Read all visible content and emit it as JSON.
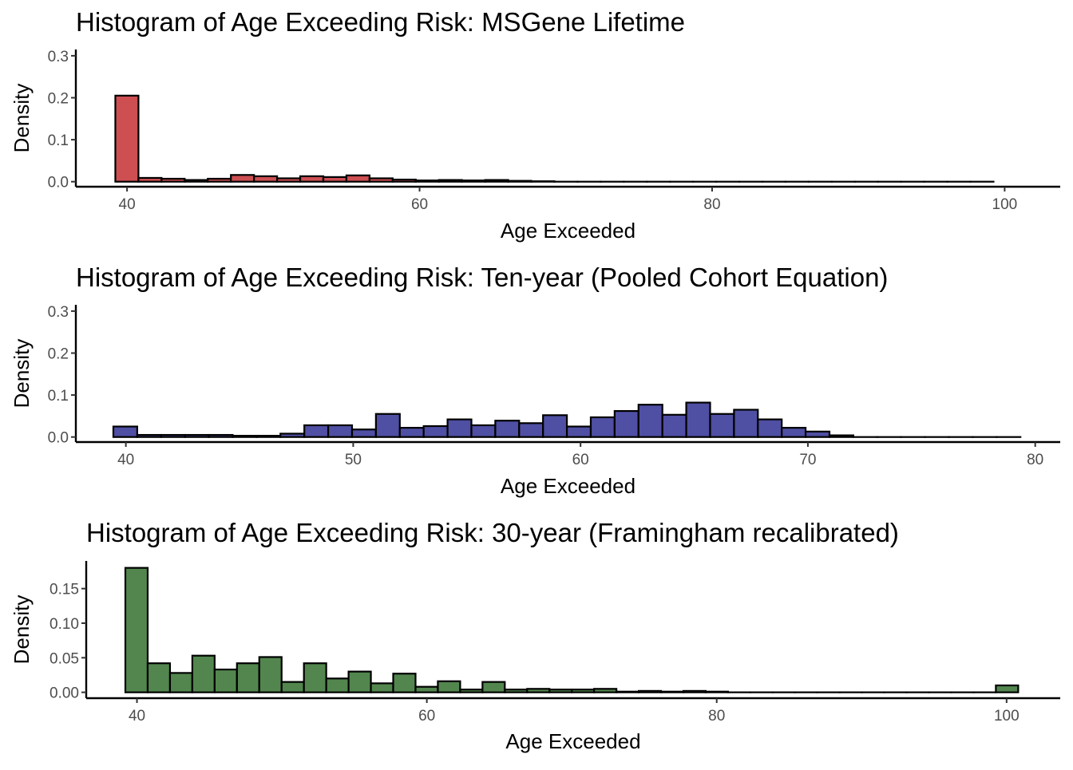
{
  "chart_data": [
    {
      "type": "bar",
      "title": "Histogram of Age Exceeding Risk: MSGene Lifetime",
      "xlabel": "Age Exceeded",
      "ylabel": "Density",
      "fill": "#cd4f52",
      "xlim": [
        36.5,
        103.8
      ],
      "ylim": [
        -0.012,
        0.315
      ],
      "xticks": [
        40,
        60,
        80,
        100
      ],
      "yticks": [
        0.0,
        0.1,
        0.2,
        0.3
      ],
      "ytick_labels": [
        "0.0",
        "0.1",
        "0.2",
        "0.3"
      ],
      "bin_start": 39.2,
      "bin_width": 1.58,
      "values": [
        0.205,
        0.009,
        0.007,
        0.004,
        0.007,
        0.016,
        0.013,
        0.008,
        0.013,
        0.011,
        0.015,
        0.008,
        0.005,
        0.003,
        0.004,
        0.003,
        0.004,
        0.002,
        0.001,
        0.0,
        0.0,
        0.0,
        0.0,
        0.0,
        0.0,
        0.0,
        0.0,
        0.0,
        0.0,
        0.0,
        0.0,
        0.0,
        0.0,
        0.0,
        0.0,
        0.0,
        0.0,
        0.0
      ]
    },
    {
      "type": "bar",
      "title": "Histogram of Age Exceeding Risk: Ten-year (Pooled Cohort Equation)",
      "xlabel": "Age Exceeded",
      "ylabel": "Density",
      "fill": "#4f4fa4",
      "xlim": [
        37.8,
        81.1
      ],
      "ylim": [
        -0.012,
        0.315
      ],
      "xticks": [
        40,
        50,
        60,
        70,
        80
      ],
      "yticks": [
        0.0,
        0.1,
        0.2,
        0.3
      ],
      "ytick_labels": [
        "0.0",
        "0.1",
        "0.2",
        "0.3"
      ],
      "bin_start": 39.45,
      "bin_width": 1.05,
      "values": [
        0.025,
        0.005,
        0.005,
        0.005,
        0.005,
        0.003,
        0.003,
        0.008,
        0.028,
        0.028,
        0.018,
        0.055,
        0.022,
        0.026,
        0.042,
        0.028,
        0.039,
        0.033,
        0.052,
        0.025,
        0.047,
        0.062,
        0.077,
        0.053,
        0.082,
        0.055,
        0.065,
        0.042,
        0.022,
        0.013,
        0.004,
        0.0,
        0.0,
        0.0,
        0.0,
        0.0,
        0.0,
        0.0
      ]
    },
    {
      "type": "bar",
      "title": "Histogram of Age Exceeding Risk: 30-year (Framingham recalibrated)",
      "xlabel": "Age Exceeded",
      "ylabel": "Density",
      "fill": "#52864e",
      "xlim": [
        36.5,
        103.7
      ],
      "ylim": [
        -0.0085,
        0.19
      ],
      "xticks": [
        40,
        60,
        80,
        100
      ],
      "yticks": [
        0.0,
        0.05,
        0.1,
        0.15
      ],
      "ytick_labels": [
        "0.00",
        "0.05",
        "0.10",
        "0.15"
      ],
      "bin_start": 39.2,
      "bin_width": 1.54,
      "values": [
        0.18,
        0.042,
        0.028,
        0.053,
        0.033,
        0.042,
        0.051,
        0.015,
        0.042,
        0.02,
        0.03,
        0.013,
        0.027,
        0.008,
        0.016,
        0.004,
        0.015,
        0.004,
        0.005,
        0.004,
        0.004,
        0.005,
        0.001,
        0.002,
        0.001,
        0.002,
        0.001,
        0.0,
        0.0,
        0.0,
        0.0,
        0.0,
        0.0,
        0.0,
        0.0,
        0.0,
        0.0,
        0.0,
        0.0,
        0.01
      ]
    }
  ]
}
